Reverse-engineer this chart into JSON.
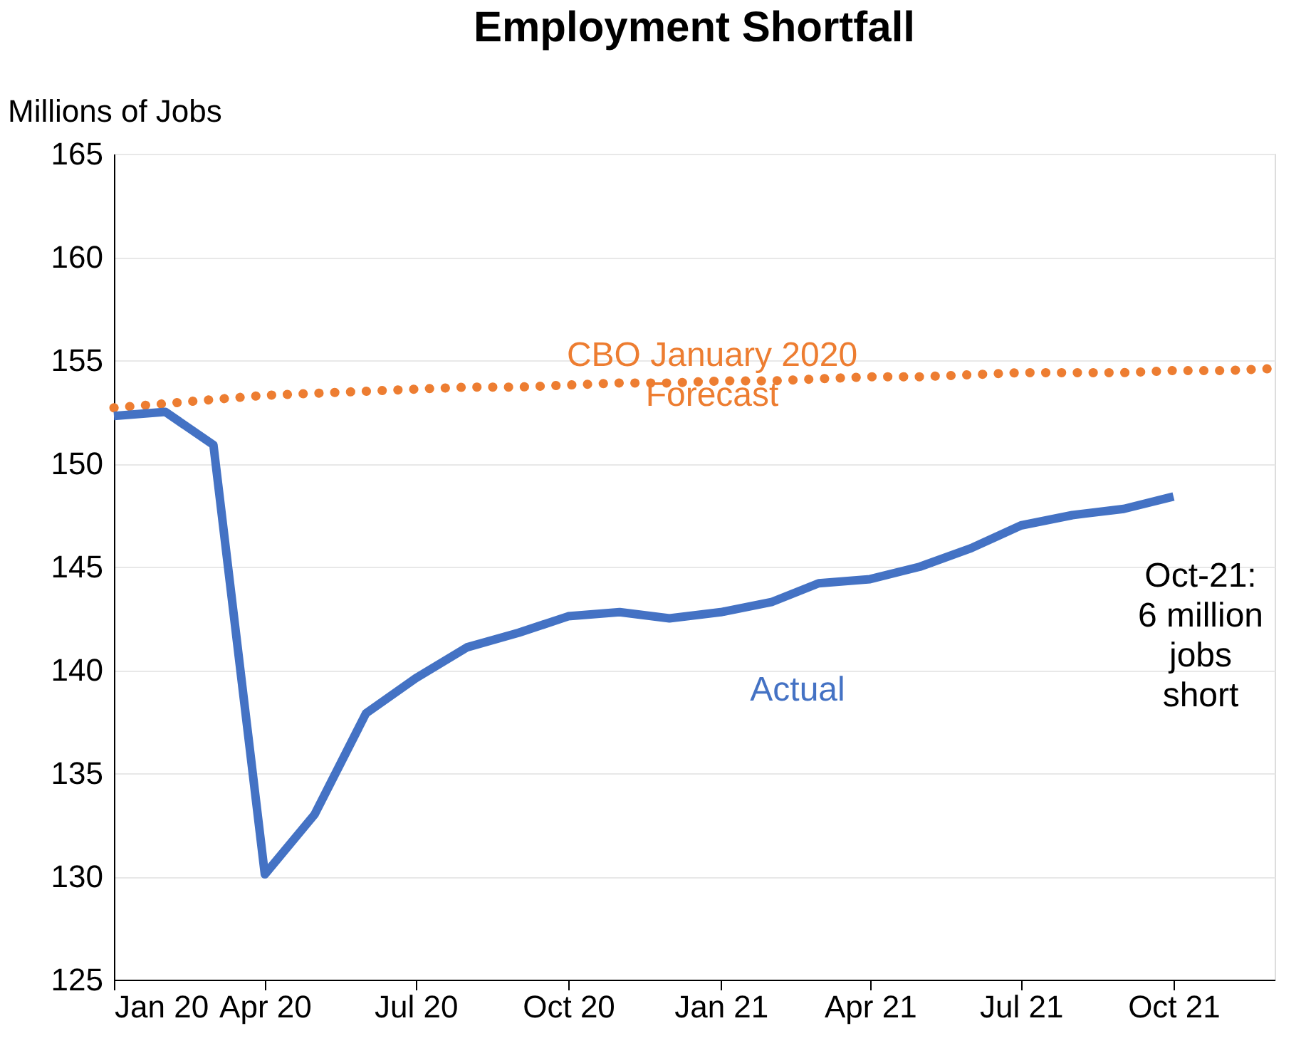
{
  "chart_data": {
    "type": "line",
    "title": "Employment Shortfall",
    "ylabel": "Millions of Jobs",
    "x": [
      "2020-01",
      "2020-02",
      "2020-03",
      "2020-04",
      "2020-05",
      "2020-06",
      "2020-07",
      "2020-08",
      "2020-09",
      "2020-10",
      "2020-11",
      "2020-12",
      "2021-01",
      "2021-02",
      "2021-03",
      "2021-04",
      "2021-05",
      "2021-06",
      "2021-07",
      "2021-08",
      "2021-09",
      "2021-10",
      "2021-11",
      "2021-12"
    ],
    "series": [
      {
        "name": "CBO January 2020\nForecast",
        "color": "#ed7d31",
        "line_style": "dotted",
        "values": [
          152.7,
          152.9,
          153.1,
          153.3,
          153.4,
          153.5,
          153.6,
          153.7,
          153.7,
          153.8,
          153.9,
          153.9,
          154.0,
          154.0,
          154.1,
          154.2,
          154.2,
          154.3,
          154.4,
          154.4,
          154.4,
          154.5,
          154.5,
          154.6
        ]
      },
      {
        "name": "Actual",
        "color": "#4472c4",
        "line_style": "solid",
        "values": [
          152.3,
          152.5,
          150.9,
          130.1,
          133.0,
          137.9,
          139.6,
          141.1,
          141.8,
          142.6,
          142.8,
          142.5,
          142.8,
          143.3,
          144.2,
          144.4,
          145.0,
          145.9,
          147.0,
          147.5,
          147.8,
          148.4,
          null,
          null
        ]
      }
    ],
    "annotations": [
      "Oct-21:\n6 million\njobs\nshort"
    ],
    "xlim": [
      "2020-01",
      "2021-12"
    ],
    "xticks": [
      {
        "value": "2020-01",
        "label": "Jan 20"
      },
      {
        "value": "2020-04",
        "label": "Apr 20"
      },
      {
        "value": "2020-07",
        "label": "Jul 20"
      },
      {
        "value": "2020-10",
        "label": "Oct 20"
      },
      {
        "value": "2021-01",
        "label": "Jan 21"
      },
      {
        "value": "2021-04",
        "label": "Apr 21"
      },
      {
        "value": "2021-07",
        "label": "Jul 21"
      },
      {
        "value": "2021-10",
        "label": "Oct 21"
      }
    ],
    "ylim": [
      125,
      165
    ],
    "yticks": [
      125,
      130,
      135,
      140,
      145,
      150,
      155,
      160,
      165
    ],
    "grid": "y",
    "marker": "none"
  }
}
